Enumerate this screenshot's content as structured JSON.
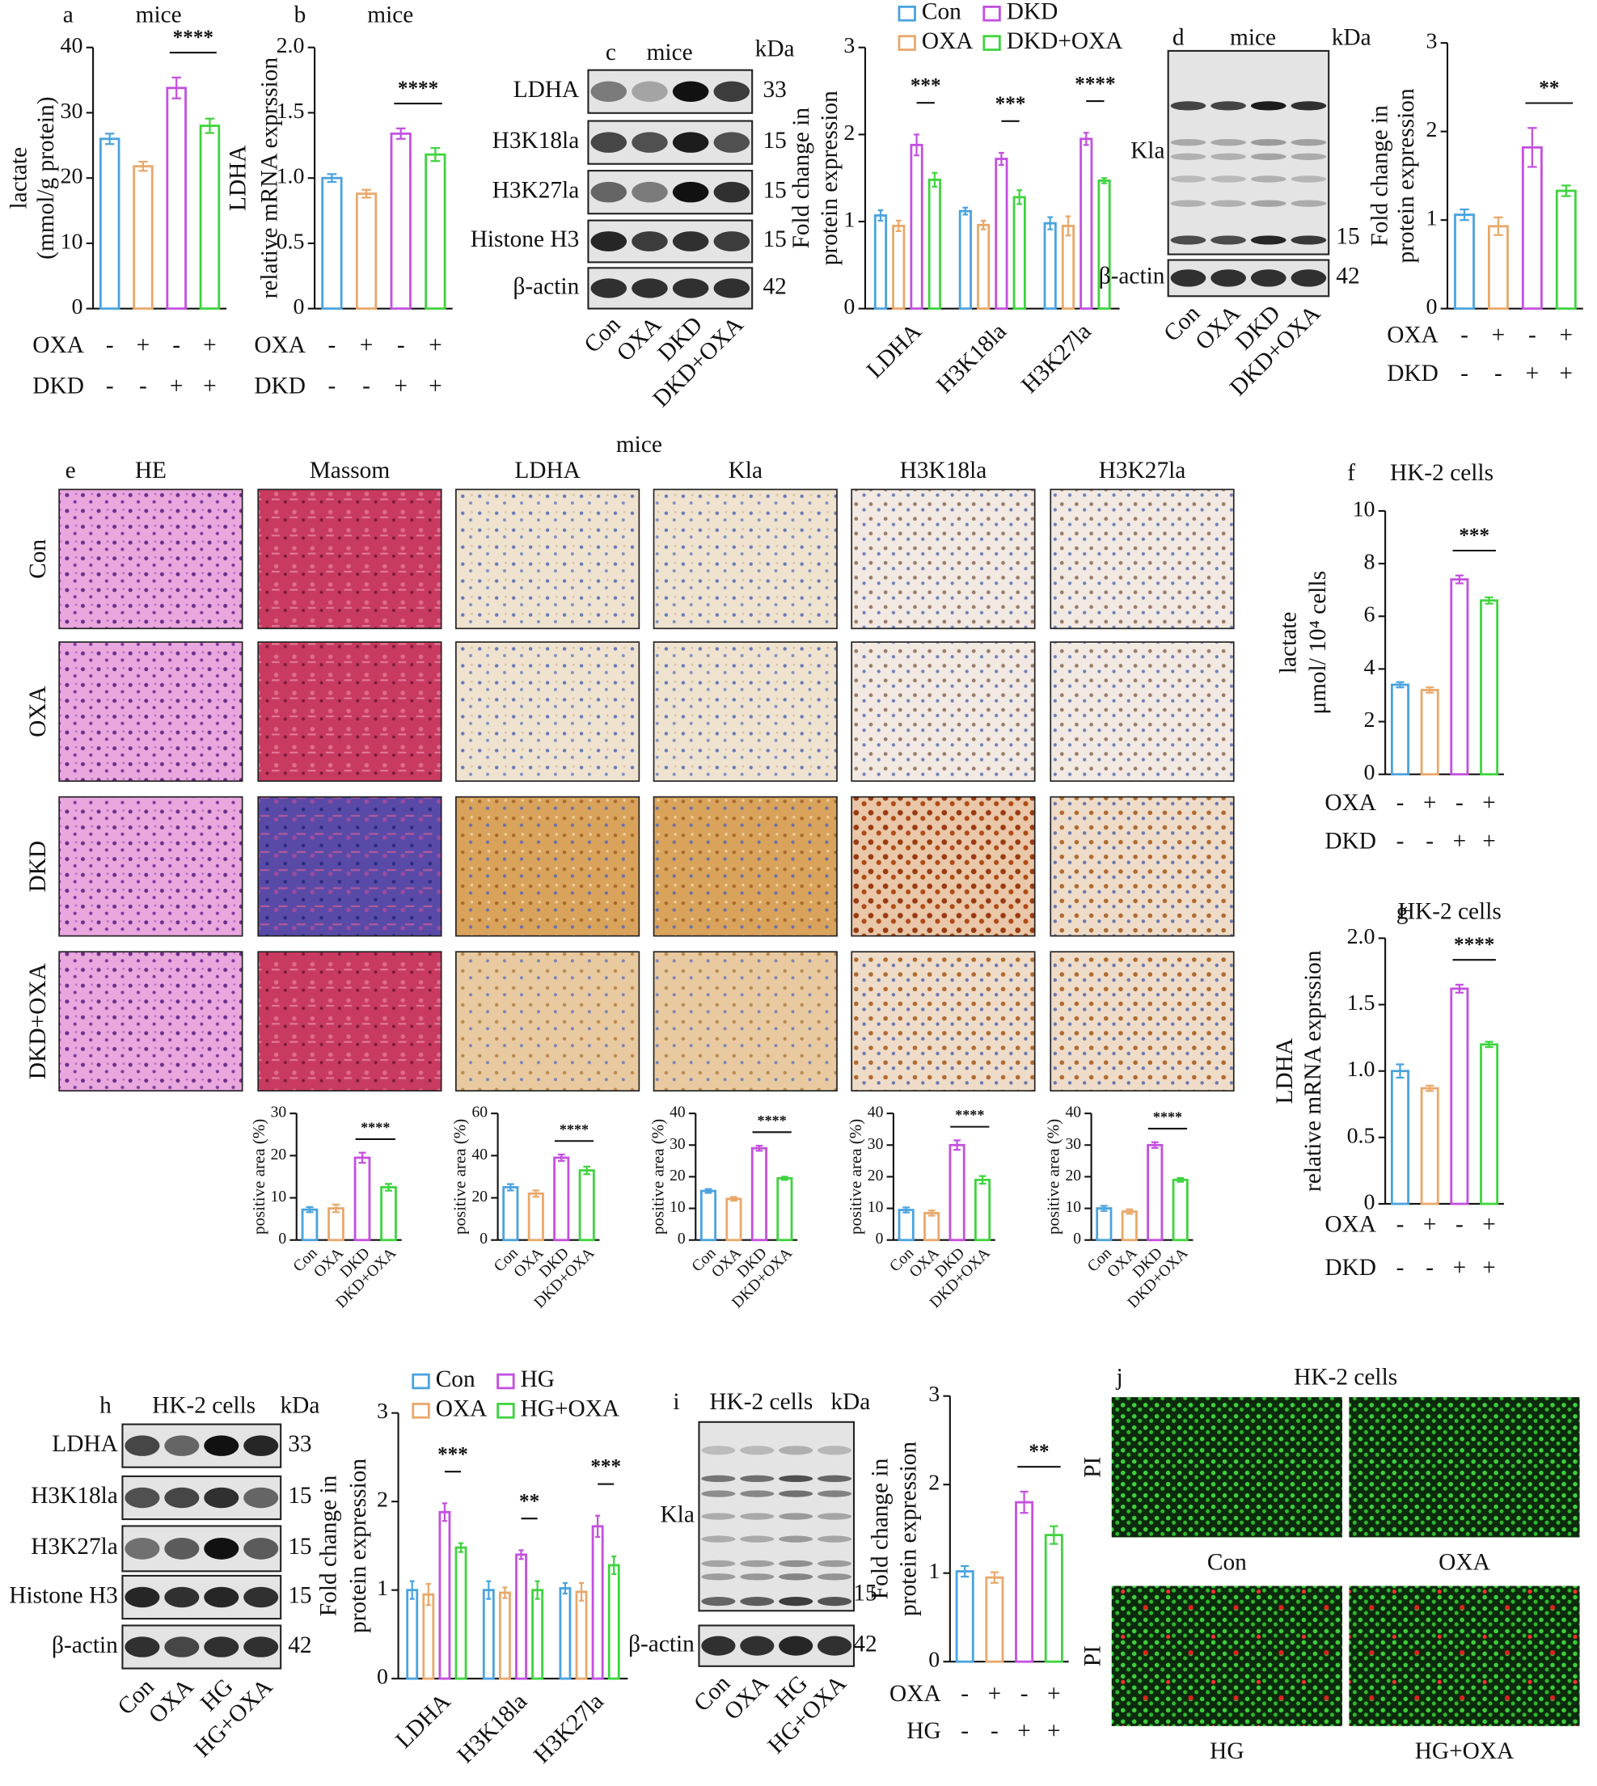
{
  "chart_data": [
    {
      "type": "bar",
      "panel": "a",
      "title": "mice",
      "ylabel": [
        "lactate",
        "(mmol/g protein)"
      ],
      "ylim": [
        0,
        40
      ],
      "yticks": [
        0,
        10,
        20,
        30,
        40
      ],
      "values": [
        26,
        21.8,
        33.8,
        28
      ],
      "errors": [
        0.8,
        0.7,
        1.6,
        1.1
      ],
      "colors": [
        "#4aa3df",
        "#e9a86a",
        "#c44fe0",
        "#3ed43e"
      ],
      "conditions": [
        {
          "name": "OXA",
          "signs": [
            "-",
            "+",
            "-",
            "+"
          ]
        },
        {
          "name": "DKD",
          "signs": [
            "-",
            "-",
            "+",
            "+"
          ]
        }
      ],
      "annotations": [
        {
          "text": "****",
          "bars": [
            2,
            3
          ]
        }
      ]
    },
    {
      "type": "bar",
      "panel": "b",
      "title": "mice",
      "ylabel": [
        "LDHA",
        "relative mRNA exprssion"
      ],
      "ylim": [
        0,
        2
      ],
      "yticks": [
        0,
        0.5,
        {
          "value": 1,
          "label": "1.0"
        },
        1.5,
        {
          "value": 2,
          "label": "2.0"
        }
      ],
      "values": [
        1.0,
        0.88,
        1.34,
        1.18
      ],
      "errors": [
        0.03,
        0.03,
        0.04,
        0.05
      ],
      "colors": [
        "#4aa3df",
        "#e9a86a",
        "#c44fe0",
        "#3ed43e"
      ],
      "conditions": [
        {
          "name": "OXA",
          "signs": [
            "-",
            "+",
            "-",
            "+"
          ]
        },
        {
          "name": "DKD",
          "signs": [
            "-",
            "-",
            "+",
            "+"
          ]
        }
      ],
      "annotations": [
        {
          "text": "****",
          "bars": [
            2,
            3
          ]
        }
      ]
    },
    {
      "type": "bar",
      "ylabel": [
        "Fold change in",
        "protein expression"
      ],
      "ylim": [
        0,
        3
      ],
      "yticks": [
        0,
        1,
        2,
        3
      ],
      "categories": [
        "LDHA",
        "H3K18la",
        "H3K27la"
      ],
      "series": [
        {
          "name": "Con",
          "color": "#4aa3df",
          "values": [
            1.07,
            1.12,
            0.98
          ],
          "errors": [
            0.06,
            0.04,
            0.07
          ]
        },
        {
          "name": "OXA",
          "color": "#e9a86a",
          "values": [
            0.95,
            0.96,
            0.95
          ],
          "errors": [
            0.06,
            0.05,
            0.11
          ]
        },
        {
          "name": "DKD",
          "color": "#c44fe0",
          "values": [
            1.88,
            1.72,
            1.95
          ],
          "errors": [
            0.12,
            0.07,
            0.07
          ]
        },
        {
          "name": "DKD+OXA",
          "color": "#3ed43e",
          "values": [
            1.48,
            1.28,
            1.47
          ],
          "errors": [
            0.08,
            0.08,
            0.03
          ]
        }
      ],
      "annotations": [
        {
          "text": "***",
          "group": 0,
          "bars": [
            2,
            3
          ]
        },
        {
          "text": "***",
          "group": 1,
          "bars": [
            2,
            3
          ]
        },
        {
          "text": "****",
          "group": 2,
          "bars": [
            2,
            3
          ]
        }
      ]
    },
    {
      "type": "bar",
      "ylabel": [
        "Fold change in",
        "protein expression"
      ],
      "ylim": [
        0,
        3
      ],
      "yticks": [
        0,
        1,
        2,
        3
      ],
      "values": [
        1.06,
        0.93,
        1.82,
        1.33
      ],
      "errors": [
        0.06,
        0.1,
        0.22,
        0.06
      ],
      "colors": [
        "#4aa3df",
        "#e9a86a",
        "#c44fe0",
        "#3ed43e"
      ],
      "conditions": [
        {
          "name": "OXA",
          "signs": [
            "-",
            "+",
            "-",
            "+"
          ]
        },
        {
          "name": "DKD",
          "signs": [
            "-",
            "-",
            "+",
            "+"
          ]
        }
      ],
      "annotations": [
        {
          "text": "**",
          "bars": [
            2,
            3
          ]
        }
      ]
    },
    {
      "type": "bar",
      "ylabel": [
        "positive area (%)"
      ],
      "ylim": [
        0,
        30
      ],
      "yticks": [
        0,
        10,
        20,
        30
      ],
      "categories": [
        "Con",
        "OXA",
        "DKD",
        "DKD+OXA"
      ],
      "values": [
        7.2,
        7.5,
        19.5,
        12.5
      ],
      "errors": [
        0.6,
        0.9,
        1.2,
        0.8
      ],
      "colors": [
        "#4aa3df",
        "#e9a86a",
        "#c44fe0",
        "#3ed43e"
      ],
      "annotations": [
        {
          "text": "****",
          "bars": [
            2,
            3
          ]
        }
      ]
    },
    {
      "type": "bar",
      "ylabel": [
        "positive area (%)"
      ],
      "ylim": [
        0,
        60
      ],
      "yticks": [
        0,
        20,
        40,
        60
      ],
      "categories": [
        "Con",
        "OXA",
        "DKD",
        "DKD+OXA"
      ],
      "values": [
        25,
        22,
        39,
        33
      ],
      "errors": [
        1.5,
        1.5,
        1.5,
        1.8
      ],
      "colors": [
        "#4aa3df",
        "#e9a86a",
        "#c44fe0",
        "#3ed43e"
      ],
      "annotations": [
        {
          "text": "****",
          "bars": [
            2,
            3
          ]
        }
      ]
    },
    {
      "type": "bar",
      "ylabel": [
        "positive area (%)"
      ],
      "ylim": [
        0,
        40
      ],
      "yticks": [
        0,
        10,
        20,
        30,
        40
      ],
      "categories": [
        "Con",
        "OXA",
        "DKD",
        "DKD+OXA"
      ],
      "values": [
        15.5,
        13,
        29,
        19.5
      ],
      "errors": [
        0.6,
        0.6,
        0.8,
        0.5
      ],
      "colors": [
        "#4aa3df",
        "#e9a86a",
        "#c44fe0",
        "#3ed43e"
      ],
      "annotations": [
        {
          "text": "****",
          "bars": [
            2,
            3
          ]
        }
      ]
    },
    {
      "type": "bar",
      "ylabel": [
        "positive area (%)"
      ],
      "ylim": [
        0,
        40
      ],
      "yticks": [
        0,
        10,
        20,
        30,
        40
      ],
      "categories": [
        "Con",
        "OXA",
        "DKD",
        "DKD+OXA"
      ],
      "values": [
        9.5,
        8.5,
        30,
        19
      ],
      "errors": [
        0.8,
        0.8,
        1.5,
        1.2
      ],
      "colors": [
        "#4aa3df",
        "#e9a86a",
        "#c44fe0",
        "#3ed43e"
      ],
      "annotations": [
        {
          "text": "****",
          "bars": [
            2,
            3
          ]
        }
      ]
    },
    {
      "type": "bar",
      "ylabel": [
        "positive area (%)"
      ],
      "ylim": [
        0,
        40
      ],
      "yticks": [
        0,
        10,
        20,
        30,
        40
      ],
      "categories": [
        "Con",
        "OXA",
        "DKD",
        "DKD+OXA"
      ],
      "values": [
        10,
        9,
        30,
        19
      ],
      "errors": [
        0.8,
        0.7,
        0.9,
        0.6
      ],
      "colors": [
        "#4aa3df",
        "#e9a86a",
        "#c44fe0",
        "#3ed43e"
      ],
      "annotations": [
        {
          "text": "****",
          "bars": [
            2,
            3
          ]
        }
      ]
    },
    {
      "type": "bar",
      "panel": "f",
      "title": "HK-2 cells",
      "ylabel": [
        "lactate",
        "μmol/ 10⁴ cells"
      ],
      "ylim": [
        0,
        10
      ],
      "yticks": [
        0,
        2,
        4,
        6,
        8,
        10
      ],
      "values": [
        3.4,
        3.2,
        7.4,
        6.6
      ],
      "errors": [
        0.1,
        0.1,
        0.15,
        0.12
      ],
      "colors": [
        "#4aa3df",
        "#e9a86a",
        "#c44fe0",
        "#3ed43e"
      ],
      "conditions": [
        {
          "name": "OXA",
          "signs": [
            "-",
            "+",
            "-",
            "+"
          ]
        },
        {
          "name": "DKD",
          "signs": [
            "-",
            "-",
            "+",
            "+"
          ]
        }
      ],
      "annotations": [
        {
          "text": "***",
          "bars": [
            2,
            3
          ]
        }
      ]
    },
    {
      "type": "bar",
      "panel": "g",
      "title": "HK-2 cells",
      "ylabel": [
        "LDHA",
        "relative mRNA exprssion"
      ],
      "ylim": [
        0,
        2
      ],
      "yticks": [
        0,
        0.5,
        {
          "value": 1,
          "label": "1.0"
        },
        1.5,
        {
          "value": 2,
          "label": "2.0"
        }
      ],
      "values": [
        1.0,
        0.87,
        1.62,
        1.2
      ],
      "errors": [
        0.05,
        0.02,
        0.03,
        0.02
      ],
      "colors": [
        "#4aa3df",
        "#e9a86a",
        "#c44fe0",
        "#3ed43e"
      ],
      "conditions": [
        {
          "name": "OXA",
          "signs": [
            "-",
            "+",
            "-",
            "+"
          ]
        },
        {
          "name": "DKD",
          "signs": [
            "-",
            "-",
            "+",
            "+"
          ]
        }
      ],
      "annotations": [
        {
          "text": "****",
          "bars": [
            2,
            3
          ]
        }
      ]
    },
    {
      "type": "bar",
      "ylabel": [
        "Fold change in",
        "protein expression"
      ],
      "ylim": [
        0,
        3
      ],
      "yticks": [
        0,
        1,
        2,
        3
      ],
      "categories": [
        "LDHA",
        "H3K18la",
        "H3K27la"
      ],
      "series": [
        {
          "name": "Con",
          "color": "#4aa3df",
          "values": [
            1.0,
            1.0,
            1.02
          ],
          "errors": [
            0.1,
            0.1,
            0.06
          ]
        },
        {
          "name": "OXA",
          "color": "#e9a86a",
          "values": [
            0.95,
            0.97,
            0.98
          ],
          "errors": [
            0.12,
            0.06,
            0.1
          ]
        },
        {
          "name": "HG",
          "color": "#c44fe0",
          "values": [
            1.88,
            1.4,
            1.72
          ],
          "errors": [
            0.1,
            0.05,
            0.12
          ]
        },
        {
          "name": "HG+OXA",
          "color": "#3ed43e",
          "values": [
            1.48,
            1.0,
            1.28
          ],
          "errors": [
            0.05,
            0.1,
            0.1
          ]
        }
      ],
      "annotations": [
        {
          "text": "***",
          "group": 0,
          "bars": [
            2,
            3
          ]
        },
        {
          "text": "**",
          "group": 1,
          "bars": [
            2,
            3
          ]
        },
        {
          "text": "***",
          "group": 2,
          "bars": [
            2,
            3
          ]
        }
      ]
    },
    {
      "type": "bar",
      "ylabel": [
        "Fold change in",
        "protein expression"
      ],
      "ylim": [
        0,
        3
      ],
      "yticks": [
        0,
        1,
        2,
        3
      ],
      "values": [
        1.02,
        0.95,
        1.8,
        1.43
      ],
      "errors": [
        0.06,
        0.06,
        0.12,
        0.1
      ],
      "colors": [
        "#4aa3df",
        "#e9a86a",
        "#c44fe0",
        "#3ed43e"
      ],
      "conditions": [
        {
          "name": "OXA",
          "signs": [
            "-",
            "+",
            "-",
            "+"
          ]
        },
        {
          "name": "HG",
          "signs": [
            "-",
            "-",
            "+",
            "+"
          ]
        }
      ],
      "annotations": [
        {
          "text": "**",
          "bars": [
            2,
            3
          ]
        }
      ]
    }
  ],
  "blots": [
    {
      "panel": "c",
      "header": "mice",
      "unit": "kDa",
      "rows": [
        {
          "label": "LDHA",
          "kda": 33
        },
        {
          "label": "H3K18la",
          "kda": 15
        },
        {
          "label": "H3K27la",
          "kda": 15
        },
        {
          "label": "Histone H3",
          "kda": 15
        },
        {
          "label": "β-actin",
          "kda": 42
        }
      ],
      "lanes": [
        "Con",
        "OXA",
        "DKD",
        "DKD+OXA"
      ]
    },
    {
      "panel": "d",
      "header": "mice",
      "unit": "kDa",
      "rows": [
        {
          "label": "Kla",
          "kda": 15
        },
        {
          "label": "β-actin",
          "kda": 42
        }
      ],
      "lanes": [
        "Con",
        "OXA",
        "DKD",
        "DKD+OXA"
      ]
    },
    {
      "panel": "h",
      "header": "HK-2 cells",
      "unit": "kDa",
      "rows": [
        {
          "label": "LDHA",
          "kda": 33
        },
        {
          "label": "H3K18la",
          "kda": 15
        },
        {
          "label": "H3K27la",
          "kda": 15
        },
        {
          "label": "Histone H3",
          "kda": 15
        },
        {
          "label": "β-actin",
          "kda": 42
        }
      ],
      "lanes": [
        "Con",
        "OXA",
        "HG",
        "HG+OXA"
      ]
    },
    {
      "panel": "i",
      "header": "HK-2 cells",
      "unit": "kDa",
      "rows": [
        {
          "label": "Kla",
          "kda": 15
        },
        {
          "label": "β-actin",
          "kda": 42
        }
      ],
      "lanes": [
        "Con",
        "OXA",
        "HG",
        "HG+OXA"
      ]
    }
  ],
  "histology": {
    "panel": "e",
    "title": "mice",
    "columns": [
      "HE",
      "Massom",
      "LDHA",
      "Kla",
      "H3K18la",
      "H3K27la"
    ],
    "rows": [
      "Con",
      "OXA",
      "DKD",
      "DKD+OXA"
    ]
  },
  "fluorescence": {
    "panel": "j",
    "title": "HK-2 cells",
    "stain": "PI",
    "images": [
      "Con",
      "OXA",
      "HG",
      "HG+OXA"
    ]
  }
}
